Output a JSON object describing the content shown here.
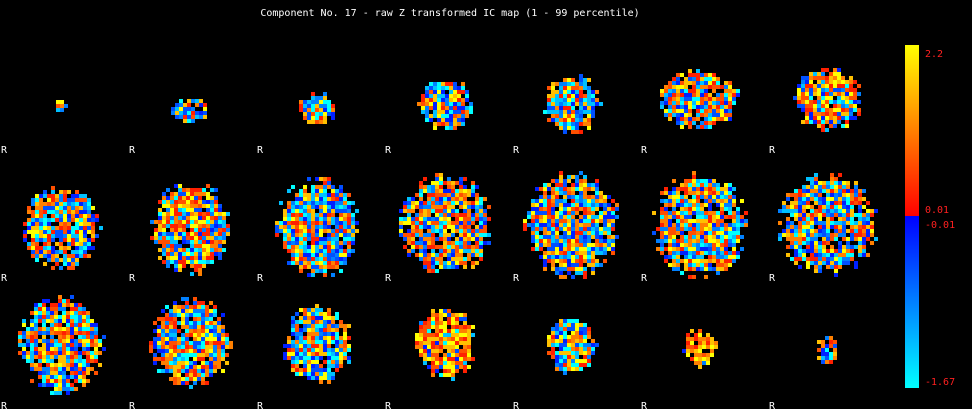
{
  "title": "Component No. 17 - raw Z transformed IC map (1 - 99 percentile)",
  "colorbar": {
    "labels": [
      "2.2",
      "0.01",
      "-0.01",
      "-1.67"
    ]
  },
  "slices": {
    "orientation_labels": [
      "R",
      "R",
      "R",
      "R",
      "R",
      "R",
      "R",
      "R",
      "R",
      "R",
      "R",
      "R",
      "R",
      "R",
      "R",
      "R",
      "R",
      "R",
      "R",
      "R",
      "R"
    ]
  }
}
